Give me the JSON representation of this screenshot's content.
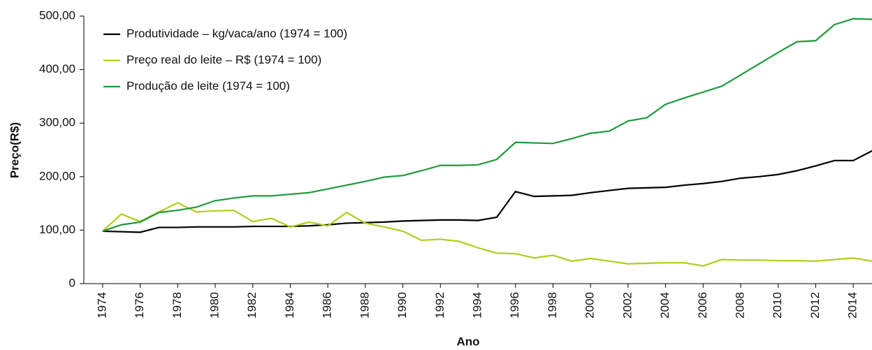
{
  "chart_data": {
    "type": "line",
    "xlabel": "Ano",
    "ylabel": "Preço(R$)",
    "x": [
      1974,
      1975,
      1976,
      1977,
      1978,
      1979,
      1980,
      1981,
      1982,
      1983,
      1984,
      1985,
      1986,
      1987,
      1988,
      1989,
      1990,
      1991,
      1992,
      1993,
      1994,
      1995,
      1996,
      1997,
      1998,
      1999,
      2000,
      2001,
      2002,
      2003,
      2004,
      2005,
      2006,
      2007,
      2008,
      2009,
      2010,
      2011,
      2012,
      2013,
      2014,
      2015
    ],
    "series": [
      {
        "name": "Produtividade – kg/vaca/ano (1974 = 100)",
        "color": "#000000",
        "values": [
          98,
          97,
          96,
          105,
          105,
          106,
          106,
          106,
          107,
          107,
          107,
          108,
          110,
          113,
          114,
          115,
          117,
          118,
          119,
          119,
          118,
          124,
          172,
          163,
          164,
          165,
          170,
          174,
          178,
          179,
          180,
          184,
          187,
          191,
          197,
          200,
          204,
          211,
          220,
          230,
          230,
          248
        ]
      },
      {
        "name": "Preço real do leite – R$ (1974 = 100)",
        "color": "#b5cc1a",
        "values": [
          98,
          130,
          116,
          134,
          151,
          134,
          136,
          137,
          116,
          122,
          106,
          115,
          108,
          133,
          113,
          106,
          98,
          81,
          83,
          79,
          67,
          57,
          56,
          48,
          53,
          42,
          47,
          42,
          37,
          38,
          39,
          39,
          33,
          45,
          44,
          44,
          43,
          43,
          42,
          45,
          48,
          42
        ]
      },
      {
        "name": "Produção de leite (1974 = 100)",
        "color": "#1f9a3c",
        "values": [
          98,
          110,
          115,
          133,
          137,
          143,
          155,
          160,
          164,
          164,
          167,
          170,
          177,
          184,
          191,
          199,
          202,
          211,
          221,
          221,
          222,
          232,
          264,
          263,
          262,
          271,
          281,
          285,
          304,
          310,
          335,
          347,
          358,
          369,
          390,
          411,
          432,
          452,
          454,
          484,
          495,
          494
        ]
      }
    ],
    "xlim": [
      1973,
      2015
    ],
    "xticks": [
      1974,
      1976,
      1978,
      1980,
      1982,
      1984,
      1986,
      1988,
      1990,
      1992,
      1994,
      1996,
      1998,
      2000,
      2002,
      2004,
      2006,
      2008,
      2010,
      2012,
      2014
    ],
    "ylim": [
      0,
      500
    ],
    "yticks": [
      0,
      {
        "value": 100,
        "label": "100,00"
      },
      {
        "value": 200,
        "label": "200,00"
      },
      {
        "value": 300,
        "label": "300,00"
      },
      {
        "value": 400,
        "label": "400,00"
      },
      {
        "value": 500,
        "label": "500,00"
      }
    ],
    "legend": "upper left"
  }
}
